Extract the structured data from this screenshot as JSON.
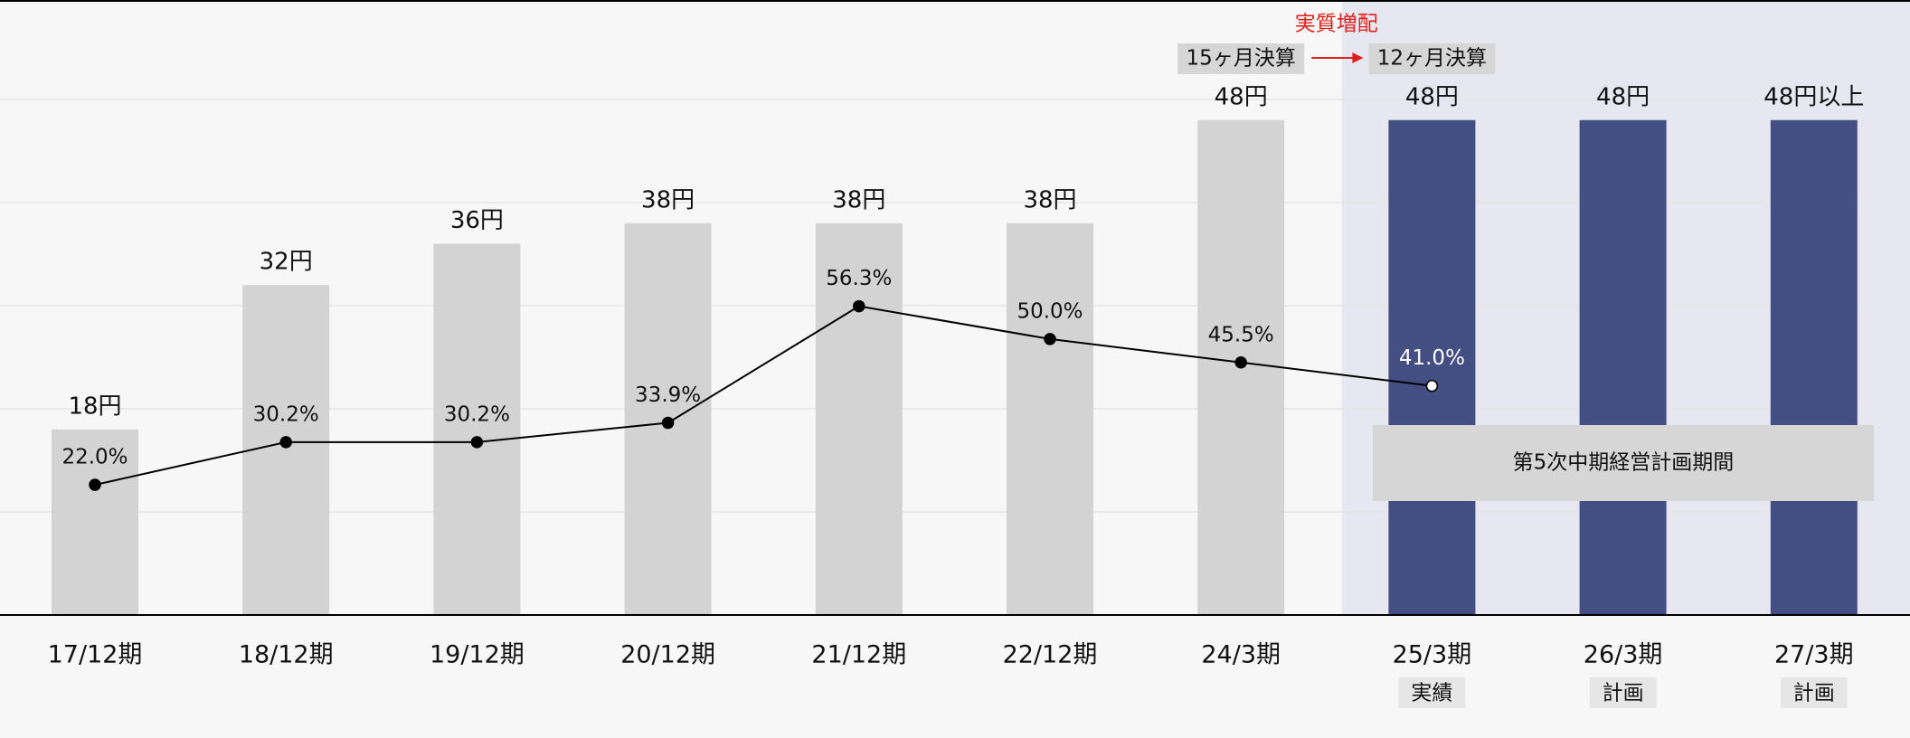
{
  "chart_data": {
    "type": "bar",
    "categories": [
      "17/12期",
      "18/12期",
      "19/12期",
      "20/12期",
      "21/12期",
      "22/12期",
      "24/3期",
      "25/3期",
      "26/3期",
      "27/3期"
    ],
    "sub_labels": [
      null,
      null,
      null,
      null,
      null,
      null,
      null,
      "実績",
      "計画",
      "計画"
    ],
    "series": [
      {
        "type": "bar",
        "values": [
          18,
          32,
          36,
          38,
          38,
          38,
          48,
          48,
          48,
          48
        ],
        "value_labels": [
          "18円",
          "32円",
          "36円",
          "38円",
          "38円",
          "38円",
          "48円",
          "48円",
          "48円",
          "48円以上"
        ],
        "colors": [
          "#d3d3d3",
          "#d3d3d3",
          "#d3d3d3",
          "#d3d3d3",
          "#d3d3d3",
          "#d3d3d3",
          "#d3d3d3",
          "#434f82",
          "#434f82",
          "#434f82"
        ]
      },
      {
        "type": "line",
        "axis": "y2",
        "color": "#000000",
        "values": [
          22.0,
          30.2,
          30.2,
          33.9,
          56.3,
          50.0,
          45.5,
          41.0,
          null,
          null
        ],
        "value_labels": [
          "22.0%",
          "30.2%",
          "30.2%",
          "33.9%",
          "56.3%",
          "50.0%",
          "45.5%",
          "41.0%",
          null,
          null
        ],
        "marker_colors": [
          "#000000",
          "#000000",
          "#000000",
          "#000000",
          "#000000",
          "#000000",
          "#000000",
          "#ffffff",
          null,
          null
        ],
        "label_colors": [
          "#111111",
          "#111111",
          "#111111",
          "#111111",
          "#111111",
          "#111111",
          "#111111",
          "#ffffff",
          null,
          null
        ]
      }
    ],
    "ylim": [
      0,
      50
    ],
    "yticks": [
      10,
      20,
      30,
      40,
      50
    ],
    "grid": true,
    "y2lim": [
      -3,
      96
    ],
    "annotations": {
      "increase": "実質増配",
      "before": "15ヶ月決算",
      "after": "12ヶ月決算",
      "plan_period": "第5次中期経営計画期間"
    }
  }
}
